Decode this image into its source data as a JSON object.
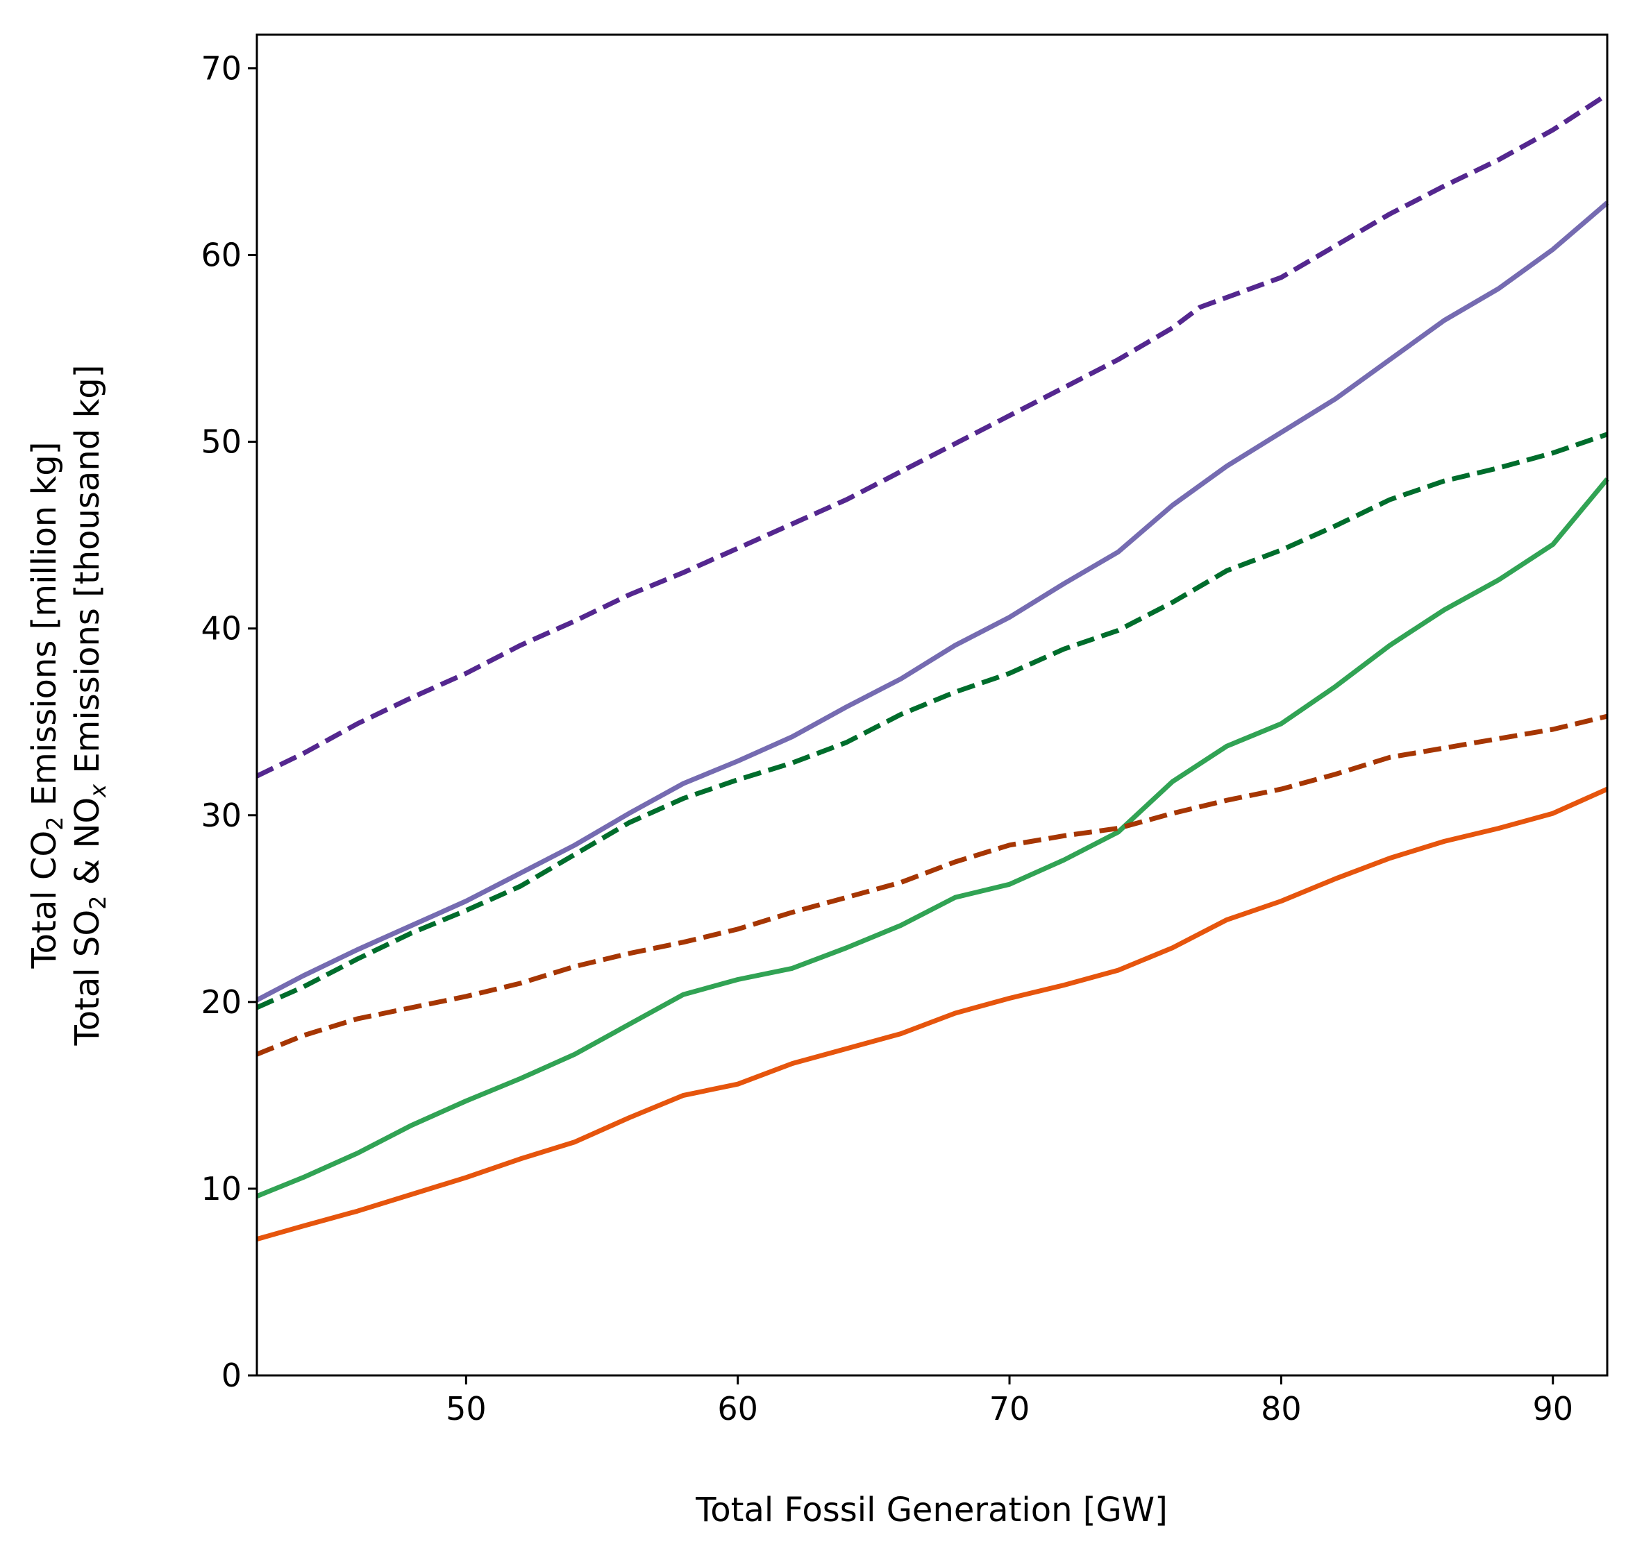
{
  "chart_data": {
    "type": "line",
    "xlabel": "Total Fossil Generation [GW]",
    "ylabel_line1": {
      "pre": "Total CO",
      "sub": "2",
      "post": " Emissions [million kg]"
    },
    "ylabel_line2": {
      "pre": "Total SO",
      "sub": "2",
      "mid": " & NO",
      "sub2": "x",
      "post": " Emissions [thousand kg]"
    },
    "xlim": [
      42.3,
      92
    ],
    "ylim": [
      0,
      71.8
    ],
    "xticks": [
      50,
      60,
      70,
      80,
      90
    ],
    "yticks": [
      0,
      10,
      20,
      30,
      40,
      50,
      60,
      70
    ],
    "grid": false,
    "series": [
      {
        "color": "#54278f",
        "dash": true,
        "x": [
          42.3,
          44,
          46,
          48,
          50,
          52,
          54,
          56,
          58,
          60,
          62,
          64,
          66,
          68,
          70,
          72,
          74,
          76,
          77,
          80,
          82,
          84,
          86,
          88,
          90,
          92
        ],
        "y": [
          32.1,
          33.3,
          34.9,
          36.3,
          37.6,
          39.1,
          40.4,
          41.8,
          43.0,
          44.3,
          45.6,
          46.9,
          48.4,
          49.9,
          51.4,
          52.9,
          54.4,
          56.1,
          57.2,
          58.8,
          60.5,
          62.2,
          63.7,
          65.1,
          66.7,
          68.6
        ]
      },
      {
        "color": "#756bb1",
        "dash": false,
        "x": [
          42.3,
          44,
          46,
          48,
          50,
          52,
          54,
          56,
          58,
          60,
          62,
          64,
          66,
          68,
          70,
          72,
          74,
          76,
          78,
          80,
          82,
          84,
          86,
          88,
          90,
          92
        ],
        "y": [
          20.1,
          21.4,
          22.8,
          24.1,
          25.4,
          26.9,
          28.4,
          30.1,
          31.7,
          32.9,
          34.2,
          35.8,
          37.3,
          39.1,
          40.6,
          42.4,
          44.1,
          46.6,
          48.7,
          50.5,
          52.3,
          54.4,
          56.5,
          58.2,
          60.3,
          62.8
        ]
      },
      {
        "color": "#006d2c",
        "dash": true,
        "x": [
          42.3,
          44,
          46,
          48,
          50,
          52,
          54,
          56,
          58,
          60,
          62,
          64,
          66,
          68,
          70,
          72,
          74,
          76,
          78,
          80,
          82,
          84,
          86,
          88,
          90,
          92
        ],
        "y": [
          19.7,
          20.8,
          22.3,
          23.7,
          24.9,
          26.2,
          27.9,
          29.6,
          30.9,
          31.9,
          32.8,
          33.9,
          35.4,
          36.6,
          37.6,
          38.9,
          39.9,
          41.4,
          43.1,
          44.2,
          45.5,
          46.9,
          47.9,
          48.6,
          49.4,
          50.4
        ]
      },
      {
        "color": "#31a354",
        "dash": false,
        "x": [
          42.3,
          44,
          46,
          48,
          50,
          52,
          54,
          56,
          58,
          60,
          62,
          64,
          66,
          68,
          70,
          72,
          74,
          76,
          78,
          80,
          82,
          84,
          86,
          88,
          90,
          92
        ],
        "y": [
          9.6,
          10.6,
          11.9,
          13.4,
          14.7,
          15.9,
          17.2,
          18.8,
          20.4,
          21.2,
          21.8,
          22.9,
          24.1,
          25.6,
          26.3,
          27.6,
          29.1,
          31.8,
          33.7,
          34.9,
          36.9,
          39.1,
          41.0,
          42.6,
          44.5,
          48.0
        ]
      },
      {
        "color": "#a63603",
        "dash": true,
        "x": [
          42.3,
          44,
          46,
          48,
          50,
          52,
          54,
          56,
          58,
          60,
          62,
          64,
          66,
          68,
          70,
          72,
          74,
          76,
          78,
          80,
          82,
          84,
          86,
          88,
          90,
          92
        ],
        "y": [
          17.2,
          18.2,
          19.1,
          19.7,
          20.3,
          21.0,
          21.9,
          22.6,
          23.2,
          23.9,
          24.8,
          25.6,
          26.4,
          27.5,
          28.4,
          28.9,
          29.3,
          30.1,
          30.8,
          31.4,
          32.2,
          33.1,
          33.6,
          34.1,
          34.6,
          35.3
        ]
      },
      {
        "color": "#e6550d",
        "dash": false,
        "x": [
          42.3,
          44,
          46,
          48,
          50,
          52,
          54,
          56,
          58,
          60,
          62,
          64,
          66,
          68,
          70,
          72,
          74,
          76,
          78,
          80,
          82,
          84,
          86,
          88,
          90,
          92
        ],
        "y": [
          7.3,
          8.0,
          8.8,
          9.7,
          10.6,
          11.6,
          12.5,
          13.8,
          15.0,
          15.6,
          16.7,
          17.5,
          18.3,
          19.4,
          20.2,
          20.9,
          21.7,
          22.9,
          24.4,
          25.4,
          26.6,
          27.7,
          28.6,
          29.3,
          30.1,
          31.4
        ]
      }
    ]
  }
}
